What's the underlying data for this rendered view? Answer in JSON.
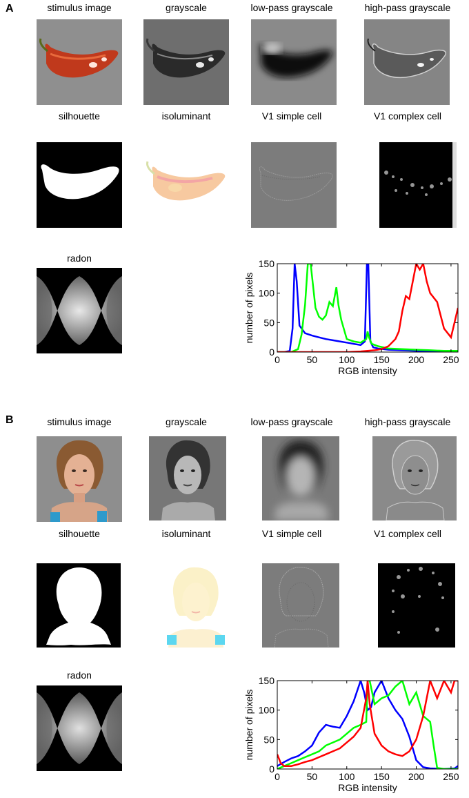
{
  "panels": [
    {
      "letter": "A",
      "captions": {
        "stimulus": "stimulus image",
        "grayscale": "grayscale",
        "lowpass": "low-pass grayscale",
        "highpass": "high-pass grayscale",
        "silhouette": "silhouette",
        "isoluminant": "isoluminant",
        "v1simple": "V1 simple cell",
        "v1complex": "V1 complex cell",
        "radon": "radon"
      },
      "chart_data": {
        "type": "line",
        "xlabel": "RGB intensity",
        "ylabel": "number of pixels",
        "xlim": [
          0,
          260
        ],
        "ylim": [
          0,
          150
        ],
        "xticks": [
          0,
          50,
          100,
          150,
          200,
          250
        ],
        "yticks": [
          0,
          50,
          100,
          150
        ],
        "series": [
          {
            "color": "#0000ff",
            "x": [
              0,
              10,
              18,
              22,
              25,
              28,
              32,
              40,
              50,
              60,
              70,
              80,
              90,
              100,
              110,
              120,
              126,
              129,
              131,
              134,
              138,
              145,
              160,
              180,
              200,
              220,
              240,
              255,
              260
            ],
            "y": [
              0,
              0,
              2,
              40,
              150,
              120,
              45,
              32,
              28,
              25,
              22,
              20,
              18,
              16,
              14,
              12,
              18,
              150,
              150,
              18,
              8,
              6,
              4,
              3,
              2,
              1,
              0,
              0,
              0
            ]
          },
          {
            "color": "#00ff00",
            "x": [
              0,
              20,
              30,
              35,
              40,
              44,
              48,
              55,
              60,
              65,
              70,
              75,
              80,
              85,
              88,
              92,
              100,
              110,
              120,
              128,
              130,
              132,
              136,
              145,
              160,
              180,
              200,
              220,
              240,
              255,
              260
            ],
            "y": [
              0,
              0,
              5,
              30,
              80,
              150,
              150,
              75,
              60,
              55,
              62,
              85,
              78,
              110,
              80,
              55,
              22,
              18,
              16,
              22,
              35,
              25,
              14,
              10,
              6,
              5,
              4,
              3,
              2,
              2,
              2
            ]
          },
          {
            "color": "#ff0000",
            "x": [
              0,
              100,
              120,
              130,
              140,
              150,
              160,
              170,
              175,
              180,
              185,
              190,
              195,
              200,
              205,
              210,
              215,
              220,
              230,
              240,
              250,
              255,
              260
            ],
            "y": [
              0,
              0,
              1,
              2,
              3,
              5,
              10,
              22,
              35,
              70,
              95,
              90,
              120,
              150,
              140,
              150,
              120,
              100,
              85,
              40,
              25,
              50,
              75
            ]
          }
        ]
      }
    },
    {
      "letter": "B",
      "captions": {
        "stimulus": "stimulus image",
        "grayscale": "grayscale",
        "lowpass": "low-pass grayscale",
        "highpass": "high-pass grayscale",
        "silhouette": "silhouette",
        "isoluminant": "isoluminant",
        "v1simple": "V1 simple cell",
        "v1complex": "V1 complex cell",
        "radon": "radon"
      },
      "chart_data": {
        "type": "line",
        "xlabel": "RGB intensity",
        "ylabel": "number of pixels",
        "xlim": [
          0,
          260
        ],
        "ylim": [
          0,
          150
        ],
        "xticks": [
          0,
          50,
          100,
          150,
          200,
          250
        ],
        "yticks": [
          0,
          50,
          100,
          150
        ],
        "series": [
          {
            "color": "#0000ff",
            "x": [
              0,
              10,
              20,
              30,
              40,
              50,
              60,
              70,
              80,
              90,
              100,
              110,
              120,
              125,
              130,
              135,
              140,
              150,
              160,
              170,
              180,
              190,
              200,
              210,
              220,
              240,
              255,
              260
            ],
            "y": [
              5,
              12,
              18,
              22,
              30,
              40,
              62,
              75,
              72,
              70,
              90,
              115,
              150,
              130,
              100,
              105,
              130,
              150,
              120,
              100,
              85,
              55,
              15,
              3,
              1,
              0,
              1,
              5
            ]
          },
          {
            "color": "#00ff00",
            "x": [
              0,
              10,
              20,
              30,
              40,
              50,
              60,
              70,
              80,
              90,
              100,
              110,
              120,
              128,
              130,
              133,
              140,
              150,
              160,
              170,
              180,
              190,
              200,
              210,
              220,
              225,
              230,
              240,
              255,
              260
            ],
            "y": [
              0,
              5,
              10,
              15,
              20,
              25,
              30,
              40,
              45,
              50,
              60,
              70,
              75,
              80,
              150,
              150,
              110,
              120,
              125,
              140,
              150,
              110,
              130,
              90,
              80,
              40,
              2,
              0,
              0,
              0
            ]
          },
          {
            "color": "#ff0000",
            "x": [
              0,
              5,
              10,
              20,
              30,
              40,
              50,
              60,
              70,
              80,
              90,
              100,
              110,
              120,
              128,
              130,
              133,
              140,
              150,
              160,
              170,
              180,
              190,
              200,
              210,
              220,
              230,
              240,
              250,
              255,
              260
            ],
            "y": [
              25,
              10,
              5,
              5,
              8,
              12,
              15,
              20,
              25,
              30,
              35,
              45,
              55,
              70,
              120,
              150,
              110,
              60,
              40,
              30,
              25,
              22,
              30,
              50,
              90,
              150,
              120,
              150,
              130,
              150,
              150
            ]
          }
        ]
      }
    }
  ]
}
